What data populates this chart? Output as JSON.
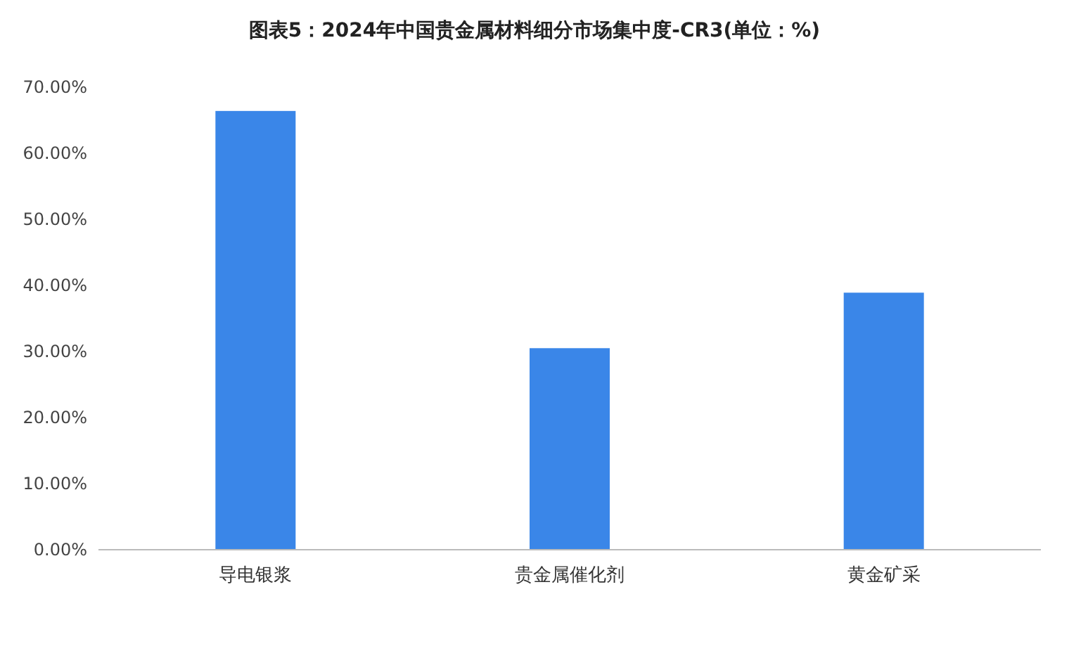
{
  "chart_data": {
    "type": "bar",
    "title": "图表5：2024年中国贵金属材料细分市场集中度-CR3(单位：%)",
    "categories": [
      "导电银浆",
      "贵金属催化剂",
      "黄金矿采"
    ],
    "values": [
      66.4,
      30.5,
      38.9
    ],
    "color": "#3a86e8",
    "ylim": [
      0,
      70
    ],
    "yticks": [
      {
        "value": 0,
        "label": "0.00%"
      },
      {
        "value": 10,
        "label": "10.00%"
      },
      {
        "value": 20,
        "label": "20.00%"
      },
      {
        "value": 30,
        "label": "30.00%"
      },
      {
        "value": 40,
        "label": "40.00%"
      },
      {
        "value": 50,
        "label": "50.00%"
      },
      {
        "value": 60,
        "label": "60.00%"
      },
      {
        "value": 70,
        "label": "70.00%"
      }
    ],
    "grid": false
  }
}
